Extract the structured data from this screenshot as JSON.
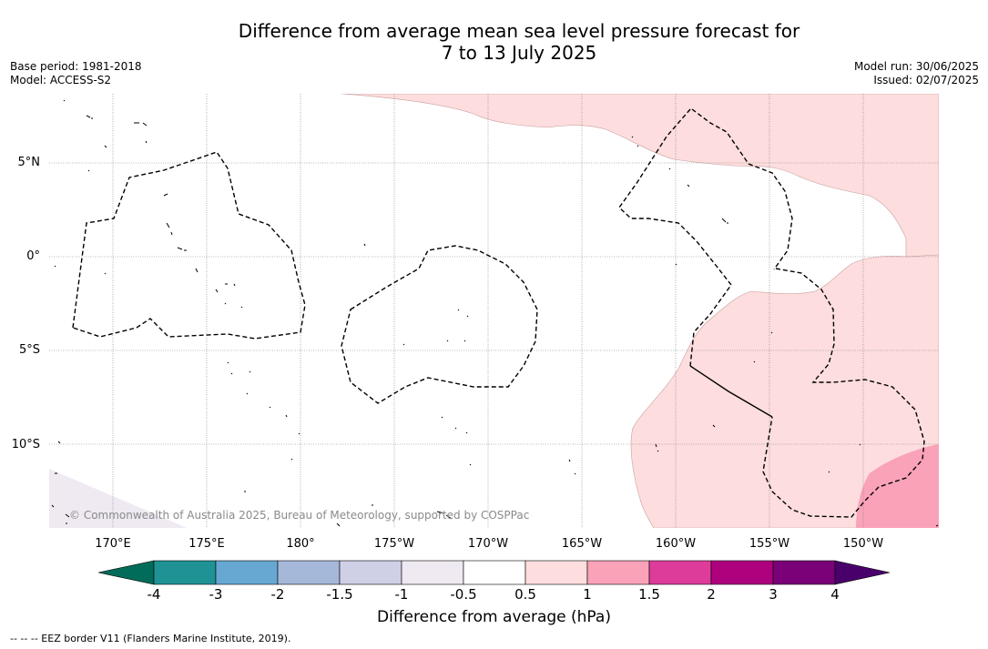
{
  "title": {
    "line1": "Difference from average mean sea level pressure forecast for",
    "line2": "7 to 13 July 2025"
  },
  "meta": {
    "base_period": "Base period: 1981-2018",
    "model": "Model: ACCESS-S2",
    "model_run": "Model run: 30/06/2025",
    "issued": "Issued: 02/07/2025"
  },
  "map": {
    "lat_labels": [
      "5°N",
      "0°",
      "5°S",
      "10°S"
    ],
    "lon_labels": [
      "170°E",
      "175°E",
      "180°",
      "175°W",
      "170°W",
      "165°W",
      "160°W",
      "155°W",
      "150°W"
    ],
    "copyright": "© Commonwealth of Australia 2025, Bureau of Meteorology, supported by COSPPac",
    "colors": {
      "anom_0p5_1": "#fddddd",
      "anom_1_1p5": "#f9a2b8",
      "anom_neg1_neg0p5": "#efe9f1"
    }
  },
  "colorbar": {
    "tick_labels": [
      "-4",
      "-3",
      "-2",
      "-1.5",
      "-1",
      "-0.5",
      "0.5",
      "1",
      "1.5",
      "2",
      "3",
      "4"
    ],
    "colors": [
      "#1f9295",
      "#66a8d2",
      "#a5b8da",
      "#cfcfe6",
      "#efe9f1",
      "#ffffff",
      "#fddddd",
      "#f9a2b8",
      "#dd3c9a",
      "#ae017e",
      "#7a0177"
    ],
    "under_color": "#016c59",
    "over_color": "#49006a",
    "label": "Difference from average (hPa)"
  },
  "footnote": "--  --  -- EEZ border V11 (Flanders Marine Institute, 2019)."
}
